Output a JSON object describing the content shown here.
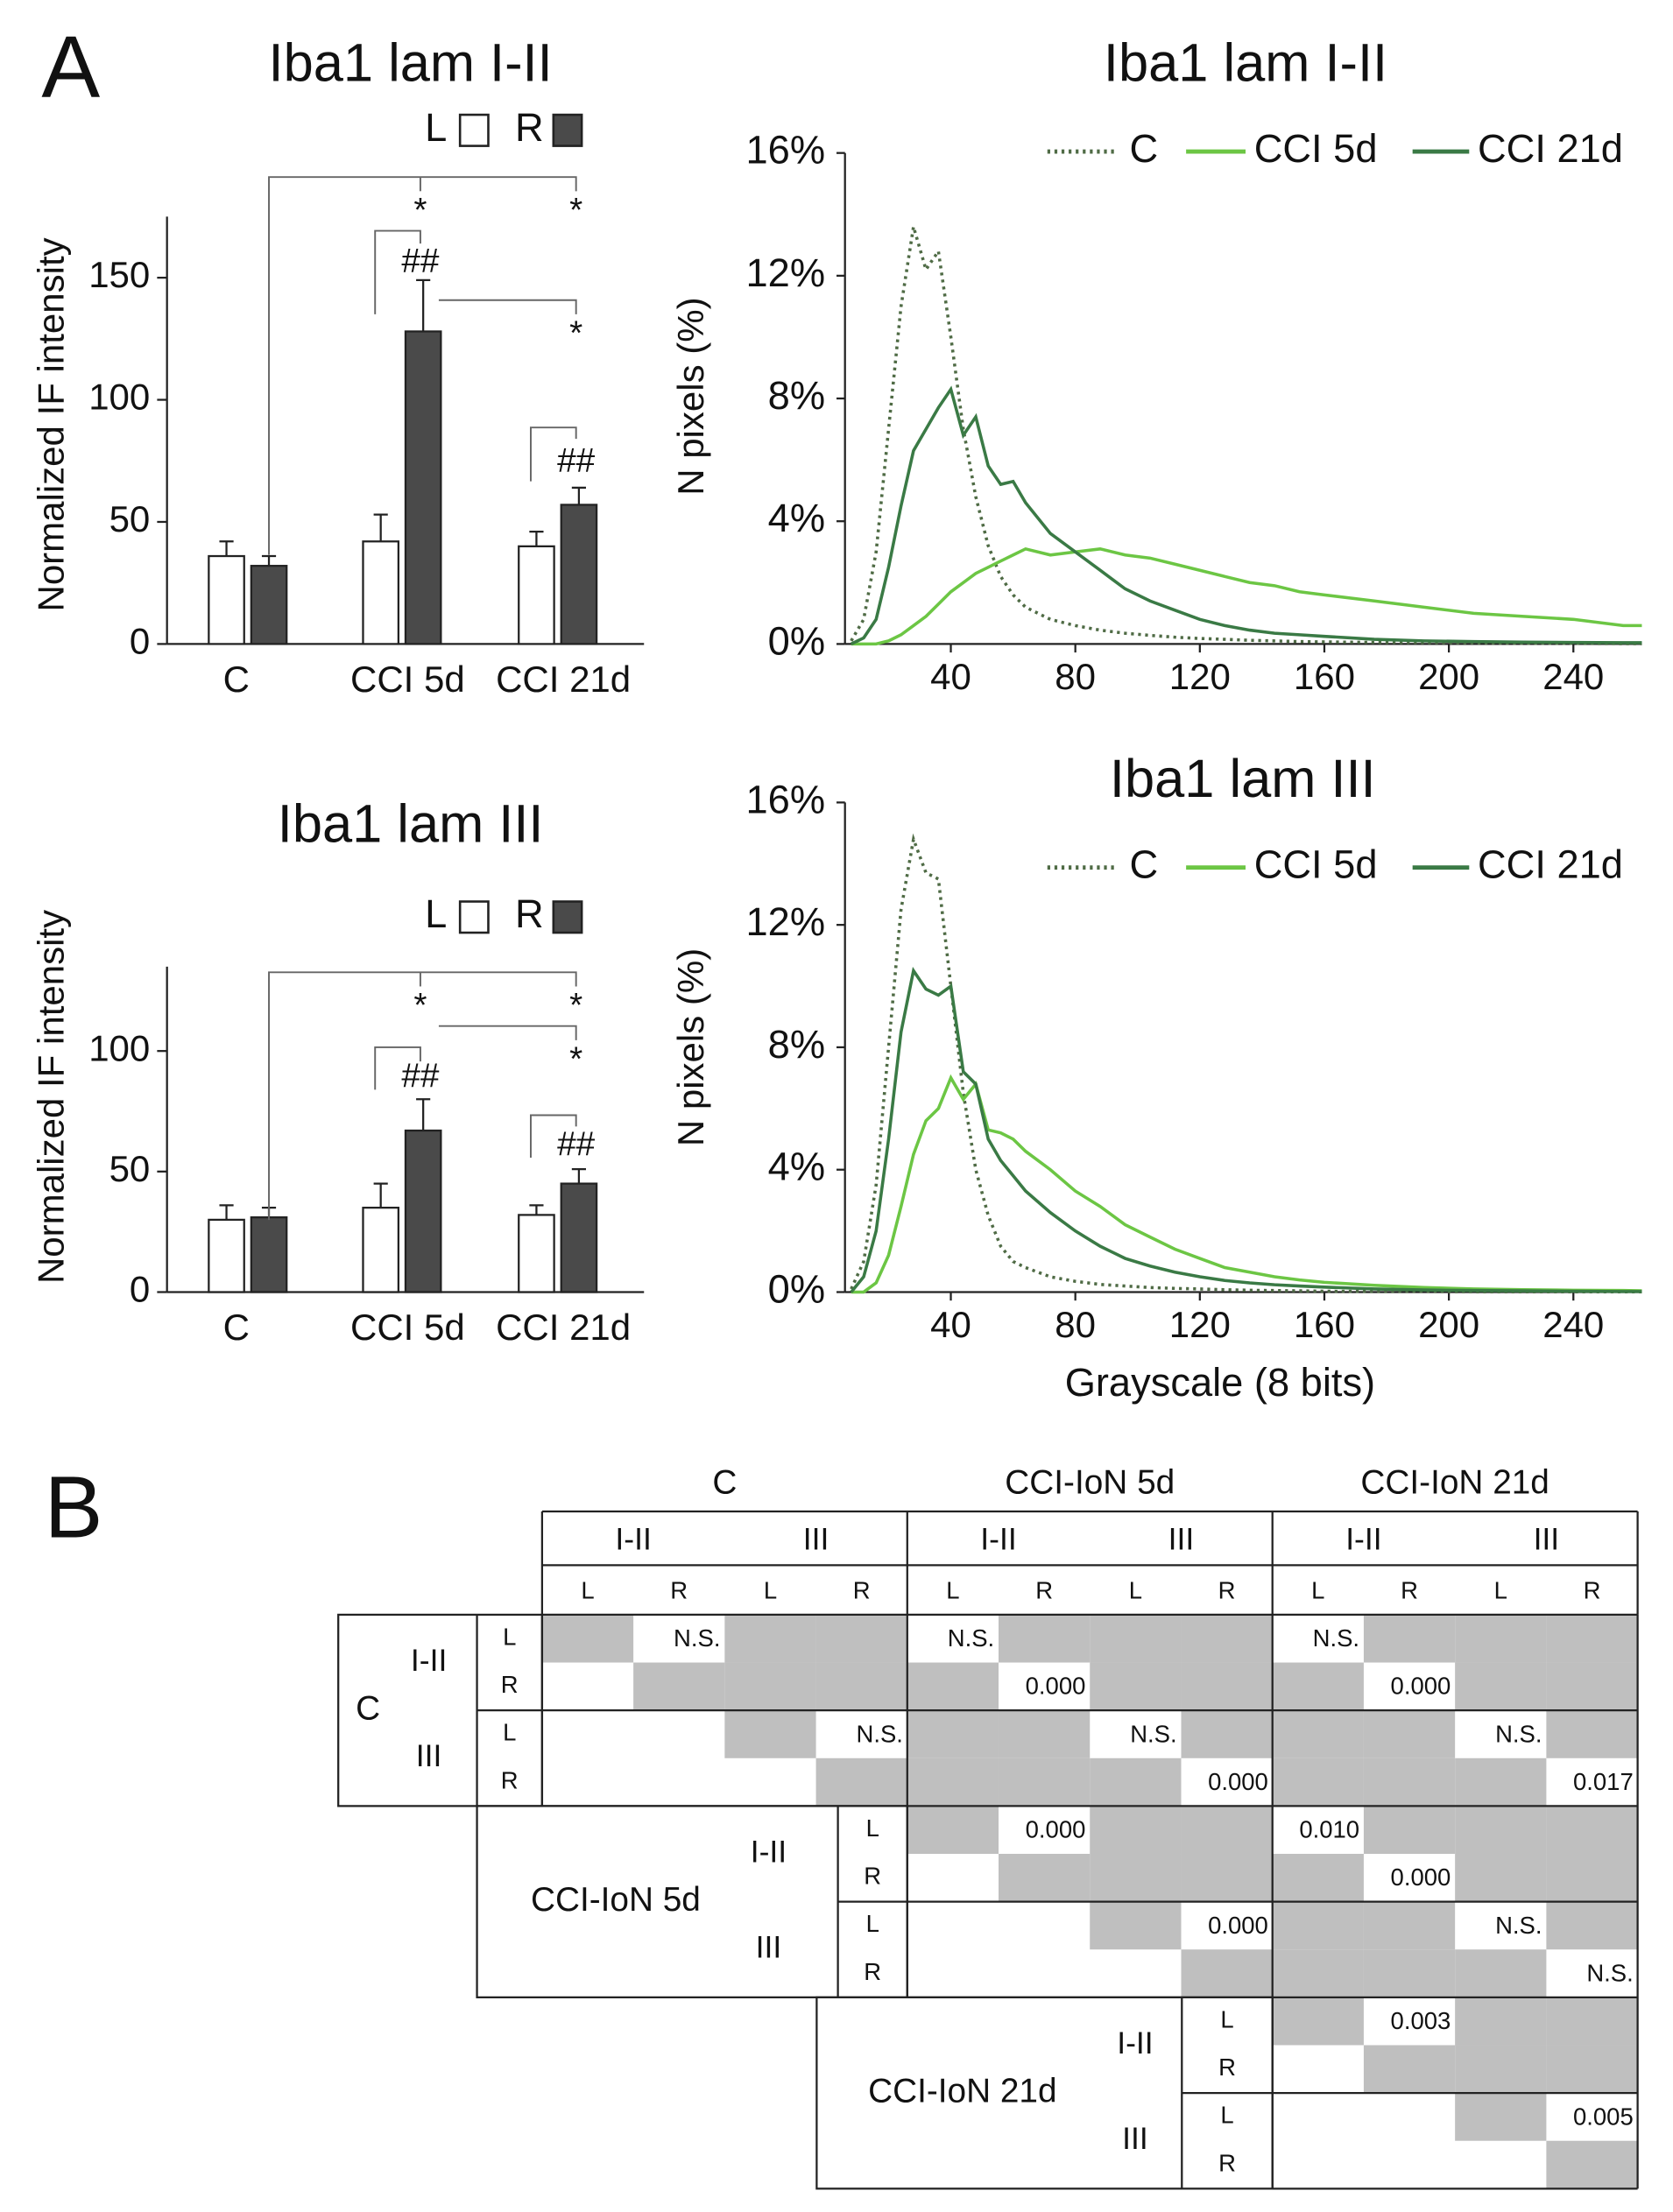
{
  "panel_labels": [
    "A",
    "B"
  ],
  "chart_data": [
    {
      "type": "bar",
      "title": "Iba1 lam I-II",
      "ylabel": "Normalized IF intensity",
      "categories": [
        "C",
        "CCI 5d",
        "CCI 21d"
      ],
      "series": [
        {
          "name": "L",
          "color": "#ffffff",
          "values": [
            36,
            42,
            40
          ],
          "errors": [
            6,
            11,
            6
          ]
        },
        {
          "name": "R",
          "color": "#4a4a4a",
          "values": [
            32,
            128,
            57
          ],
          "errors": [
            4,
            21,
            7
          ]
        }
      ],
      "ylim": [
        0,
        175
      ],
      "yticks": [
        0,
        50,
        100,
        150
      ],
      "annotations": [
        "*",
        "*",
        "##",
        "*",
        "##"
      ]
    },
    {
      "type": "line",
      "title": "Iba1 lam I-II",
      "ylabel": "N pixels (%)",
      "x": [
        8,
        12,
        16,
        20,
        24,
        28,
        32,
        36,
        40,
        44,
        48,
        52,
        56,
        60,
        64,
        72,
        80,
        88,
        96,
        104,
        112,
        120,
        128,
        136,
        144,
        152,
        160,
        176,
        192,
        208,
        224,
        240,
        256,
        262
      ],
      "series": [
        {
          "name": "C",
          "color": "#4f6b45",
          "linestyle": "dotted",
          "values": [
            0.1,
            0.8,
            3.0,
            7.0,
            11.0,
            13.6,
            12.2,
            12.8,
            10.0,
            7.0,
            4.8,
            3.2,
            2.2,
            1.6,
            1.2,
            0.8,
            0.6,
            0.45,
            0.35,
            0.28,
            0.22,
            0.18,
            0.15,
            0.12,
            0.1,
            0.08,
            0.07,
            0.05,
            0.04,
            0.03,
            0.02,
            0.02,
            0.01,
            0.01
          ]
        },
        {
          "name": "CCI 5d",
          "color": "#6cc644",
          "linestyle": "solid",
          "values": [
            0,
            0,
            0,
            0.1,
            0.3,
            0.6,
            0.9,
            1.3,
            1.7,
            2.0,
            2.3,
            2.5,
            2.7,
            2.9,
            3.1,
            2.9,
            3.0,
            3.1,
            2.9,
            2.8,
            2.6,
            2.4,
            2.2,
            2.0,
            1.9,
            1.7,
            1.6,
            1.4,
            1.2,
            1.0,
            0.9,
            0.8,
            0.6,
            0.6
          ]
        },
        {
          "name": "CCI 21d",
          "color": "#3a7a45",
          "linestyle": "solid",
          "values": [
            0,
            0.2,
            0.8,
            2.5,
            4.5,
            6.3,
            7.0,
            7.7,
            8.3,
            6.8,
            7.4,
            5.8,
            5.2,
            5.3,
            4.6,
            3.6,
            3.0,
            2.4,
            1.8,
            1.4,
            1.1,
            0.8,
            0.6,
            0.45,
            0.35,
            0.3,
            0.25,
            0.15,
            0.1,
            0.08,
            0.06,
            0.05,
            0.04,
            0.04
          ]
        }
      ],
      "xlim": [
        6,
        262
      ],
      "xticks": [
        40,
        80,
        120,
        160,
        200,
        240
      ],
      "ylim": [
        0,
        16
      ],
      "yticks": [
        {
          "value": 0,
          "label": "0%"
        },
        {
          "value": 4,
          "label": "4%"
        },
        {
          "value": 8,
          "label": "8%"
        },
        {
          "value": 12,
          "label": "12%"
        },
        {
          "value": 16,
          "label": "16%"
        }
      ]
    },
    {
      "type": "bar",
      "title": "Iba1 lam III",
      "ylabel": "Normalized IF intensity",
      "categories": [
        "C",
        "CCI 5d",
        "CCI 21d"
      ],
      "series": [
        {
          "name": "L",
          "color": "#ffffff",
          "values": [
            30,
            35,
            32
          ],
          "errors": [
            6,
            10,
            4
          ]
        },
        {
          "name": "R",
          "color": "#4a4a4a",
          "values": [
            31,
            67,
            45
          ],
          "errors": [
            4,
            13,
            6
          ]
        }
      ],
      "ylim": [
        0,
        135
      ],
      "yticks": [
        0,
        50,
        100
      ],
      "annotations": [
        "*",
        "*",
        "*",
        "##",
        "##"
      ]
    },
    {
      "type": "line",
      "title": "Iba1 lam III",
      "ylabel": "N pixels (%)",
      "xlabel": "Grayscale (8 bits)",
      "x": [
        8,
        12,
        16,
        20,
        24,
        28,
        32,
        36,
        40,
        44,
        48,
        52,
        56,
        60,
        64,
        72,
        80,
        88,
        96,
        104,
        112,
        120,
        128,
        136,
        144,
        152,
        160,
        176,
        192,
        208,
        224,
        240,
        256,
        262
      ],
      "series": [
        {
          "name": "C",
          "color": "#4f6b45",
          "linestyle": "dotted",
          "values": [
            0.1,
            1.0,
            3.5,
            8.0,
            12.5,
            14.8,
            13.7,
            13.5,
            10.0,
            6.5,
            4.0,
            2.5,
            1.5,
            1.0,
            0.8,
            0.5,
            0.35,
            0.25,
            0.2,
            0.15,
            0.12,
            0.1,
            0.08,
            0.06,
            0.05,
            0.04,
            0.03,
            0.02,
            0.02,
            0.01,
            0.01,
            0.01,
            0.01,
            0.01
          ]
        },
        {
          "name": "CCI 5d",
          "color": "#6cc644",
          "linestyle": "solid",
          "values": [
            0,
            0,
            0.3,
            1.2,
            2.8,
            4.5,
            5.6,
            6.0,
            7.0,
            6.3,
            6.8,
            5.3,
            5.2,
            5.0,
            4.6,
            4.0,
            3.3,
            2.8,
            2.2,
            1.8,
            1.4,
            1.1,
            0.8,
            0.65,
            0.5,
            0.4,
            0.32,
            0.22,
            0.15,
            0.1,
            0.08,
            0.06,
            0.05,
            0.04
          ]
        },
        {
          "name": "CCI 21d",
          "color": "#3a7a45",
          "linestyle": "solid",
          "values": [
            0,
            0.5,
            2.0,
            5.0,
            8.5,
            10.5,
            9.9,
            9.7,
            10.0,
            7.2,
            6.8,
            5.0,
            4.3,
            3.8,
            3.3,
            2.6,
            2.0,
            1.5,
            1.1,
            0.85,
            0.65,
            0.5,
            0.38,
            0.3,
            0.24,
            0.2,
            0.16,
            0.1,
            0.07,
            0.05,
            0.04,
            0.03,
            0.02,
            0.02
          ]
        }
      ],
      "xlim": [
        6,
        262
      ],
      "xticks": [
        40,
        80,
        120,
        160,
        200,
        240
      ],
      "ylim": [
        0,
        16
      ],
      "yticks": [
        {
          "value": 0,
          "label": "0%"
        },
        {
          "value": 4,
          "label": "4%"
        },
        {
          "value": 8,
          "label": "8%"
        },
        {
          "value": 12,
          "label": "12%"
        },
        {
          "value": 16,
          "label": "16%"
        }
      ]
    }
  ],
  "table": {
    "groups": [
      "C",
      "CCI-IoN 5d",
      "CCI-IoN 21d"
    ],
    "laminae": [
      "I-II",
      "III"
    ],
    "sides": [
      "L",
      "R"
    ],
    "rows": [
      [
        null,
        "N.S.",
        null,
        null,
        "N.S.",
        null,
        null,
        null,
        "N.S.",
        null,
        null,
        null
      ],
      [
        null,
        null,
        null,
        null,
        null,
        "0.000",
        null,
        null,
        null,
        "0.000",
        null,
        null
      ],
      [
        null,
        null,
        null,
        "N.S.",
        null,
        null,
        "N.S.",
        null,
        null,
        null,
        "N.S.",
        null
      ],
      [
        null,
        null,
        null,
        null,
        null,
        null,
        null,
        "0.000",
        null,
        null,
        null,
        "0.017"
      ],
      [
        null,
        null,
        null,
        null,
        null,
        "0.000",
        null,
        null,
        "0.010",
        null,
        null,
        null
      ],
      [
        null,
        null,
        null,
        null,
        null,
        null,
        null,
        null,
        null,
        "0.000",
        null,
        null
      ],
      [
        null,
        null,
        null,
        null,
        null,
        null,
        null,
        "0.000",
        null,
        null,
        "N.S.",
        null
      ],
      [
        null,
        null,
        null,
        null,
        null,
        null,
        null,
        null,
        null,
        null,
        null,
        "N.S."
      ],
      [
        null,
        null,
        null,
        null,
        null,
        null,
        null,
        null,
        null,
        "0.003",
        null,
        null
      ],
      [
        null,
        null,
        null,
        null,
        null,
        null,
        null,
        null,
        null,
        null,
        null,
        null
      ],
      [
        null,
        null,
        null,
        null,
        null,
        null,
        null,
        null,
        null,
        null,
        null,
        "0.005"
      ],
      [
        null,
        null,
        null,
        null,
        null,
        null,
        null,
        null,
        null,
        null,
        null,
        null
      ]
    ]
  }
}
